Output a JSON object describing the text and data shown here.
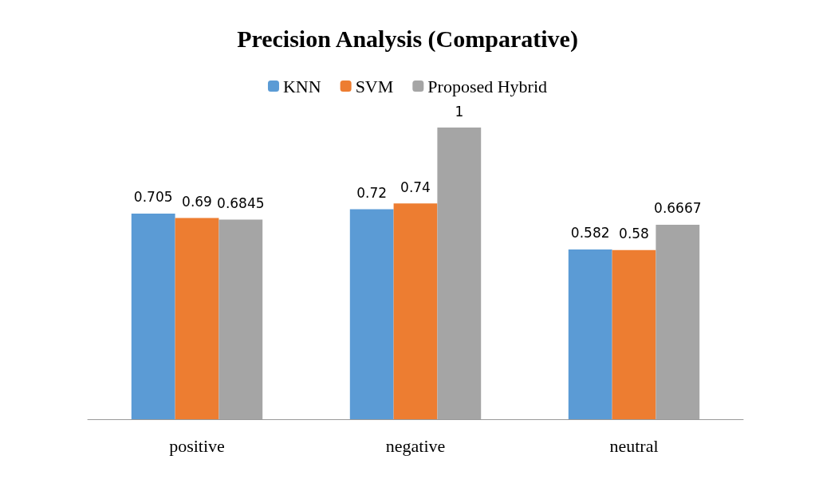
{
  "chart_data": {
    "type": "bar",
    "title": "Precision Analysis (Comparative)",
    "categories": [
      "positive",
      "negative",
      "neutral"
    ],
    "series": [
      {
        "name": "KNN",
        "color": "#5b9bd5",
        "values": [
          0.705,
          0.72,
          0.582
        ]
      },
      {
        "name": "SVM",
        "color": "#ed7d31",
        "values": [
          0.69,
          0.74,
          0.58
        ]
      },
      {
        "name": "Proposed Hybrid",
        "color": "#a5a5a5",
        "values": [
          0.6845,
          1,
          0.6667
        ]
      }
    ],
    "data_labels": true,
    "legend": "top",
    "grid": false,
    "tick_labels": "x"
  }
}
